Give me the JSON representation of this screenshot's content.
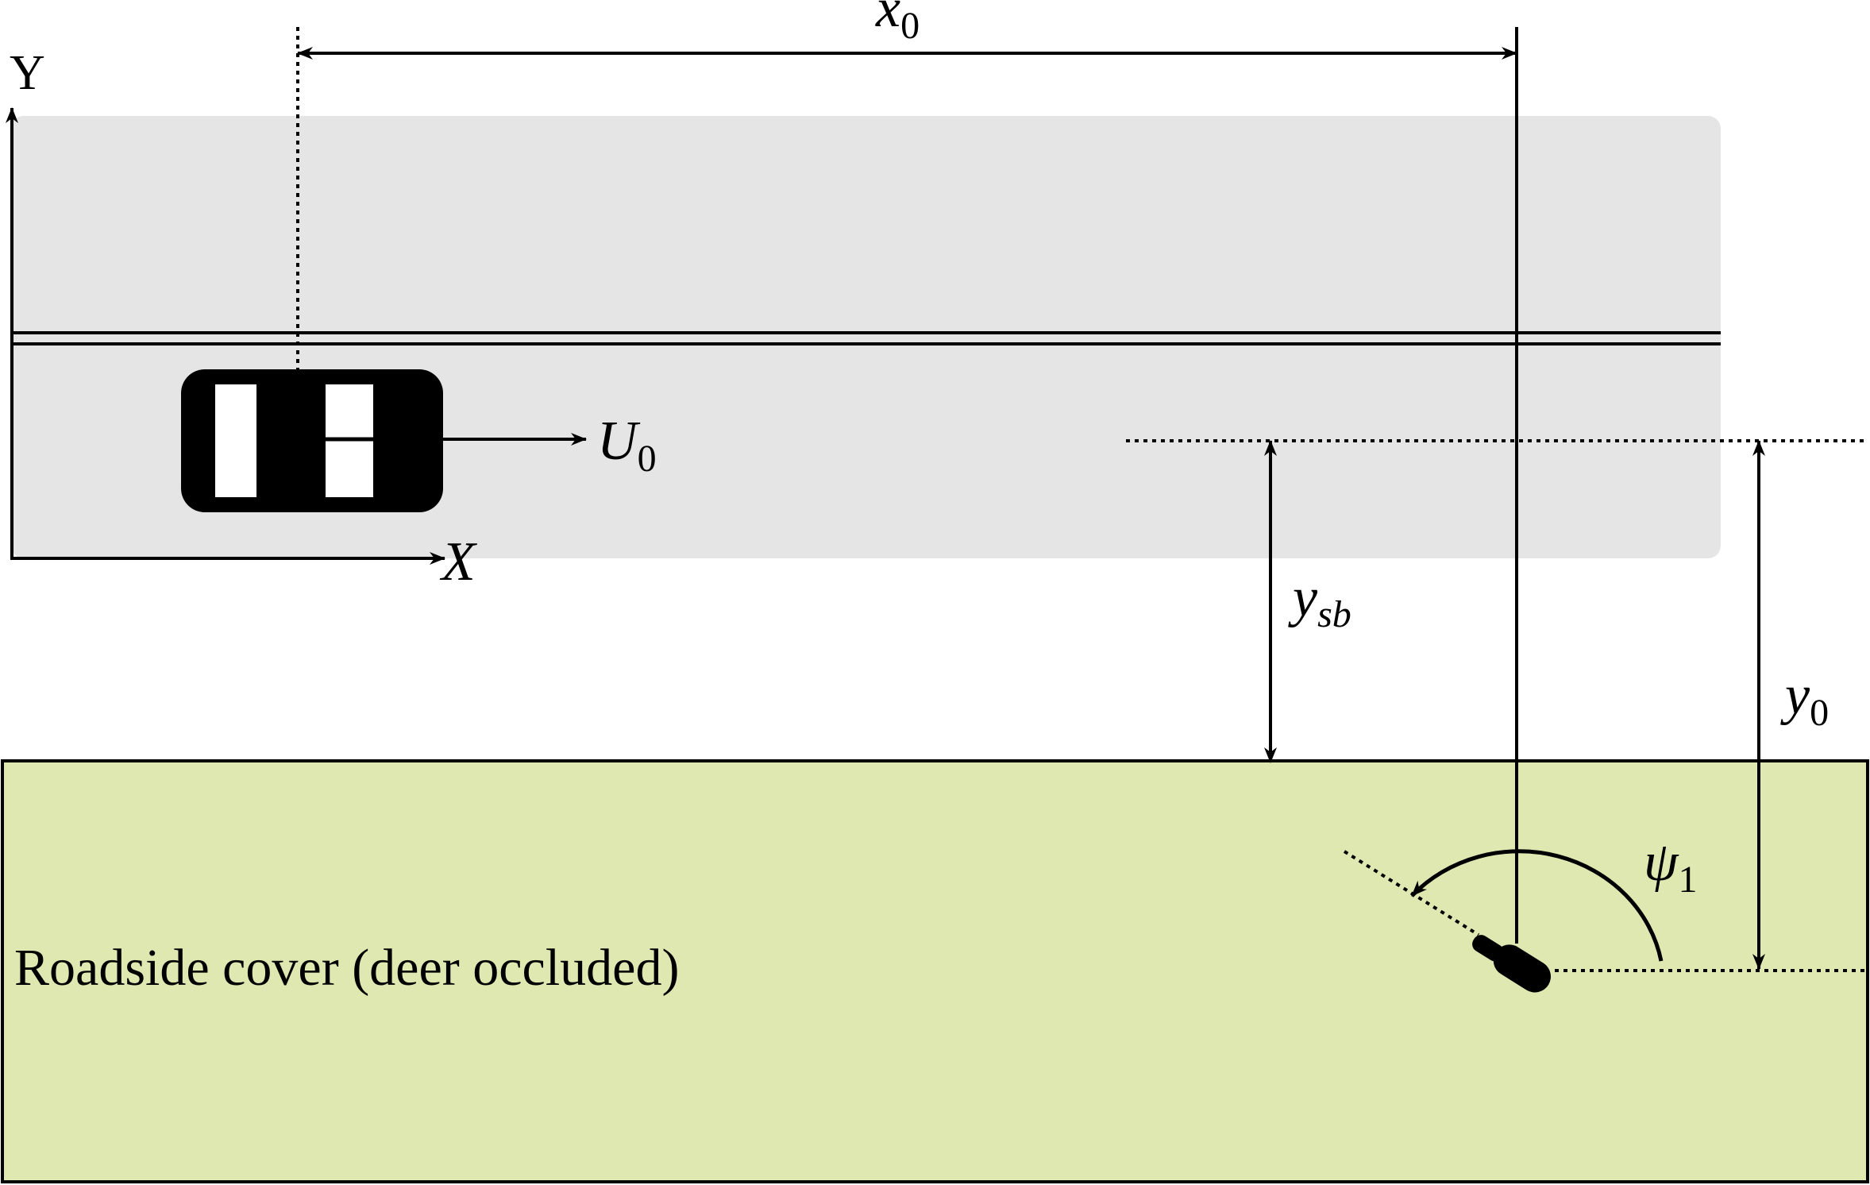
{
  "labels": {
    "axis_y": "Y",
    "axis_x": "X",
    "x0_main": "x",
    "x0_sub": "0",
    "u0_main": "U",
    "u0_sub": "0",
    "ysb_main": "y",
    "ysb_sub": "sb",
    "y0_main": "y",
    "y0_sub": "0",
    "psi_main": "ψ",
    "psi_sub": "1",
    "cover": "Roadside cover (deer occluded)"
  },
  "colors": {
    "road": "#e5e5e5",
    "cover": "#dfe8b0",
    "ink": "#000000",
    "car_window": "#ffffff"
  }
}
